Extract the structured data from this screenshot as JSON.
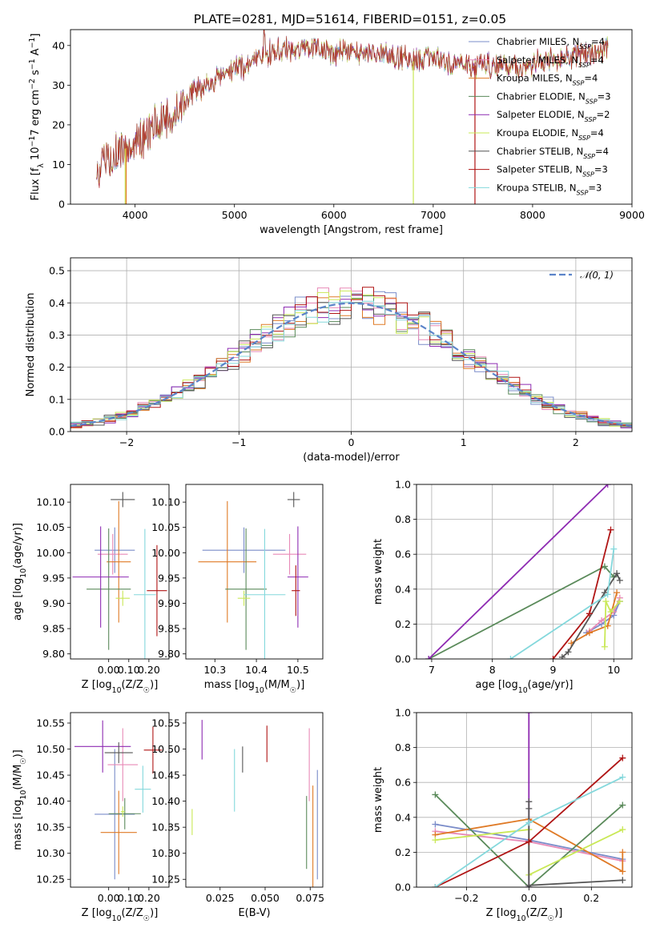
{
  "figure": {
    "title": "PLATE=0281, MJD=51614, FIBERID=0151, z=0.05"
  },
  "models": [
    {
      "name": "Chabrier MILES",
      "nssp": "4",
      "color": "#7a8cc9"
    },
    {
      "name": "Salpeter MILES",
      "nssp": "4",
      "color": "#e88ab7"
    },
    {
      "name": "Kroupa MILES",
      "nssp": "4",
      "color": "#df7a26"
    },
    {
      "name": "Chabrier ELODIE",
      "nssp": "3",
      "color": "#5a8a5a"
    },
    {
      "name": "Salpeter ELODIE",
      "nssp": "2",
      "color": "#8e2bb2"
    },
    {
      "name": "Kroupa ELODIE",
      "nssp": "4",
      "color": "#c9e856"
    },
    {
      "name": "Chabrier STELIB",
      "nssp": "4",
      "color": "#555555"
    },
    {
      "name": "Salpeter STELIB",
      "nssp": "3",
      "color": "#b01515"
    },
    {
      "name": "Kroupa STELIB",
      "nssp": "3",
      "color": "#84d8dc"
    }
  ],
  "chart_data": [
    {
      "id": "spectrum",
      "type": "line",
      "xlabel": "wavelength [Angstrom, rest frame]",
      "ylabel": "Flux [f_λ 10^-17 erg cm^-2 s^-1 A^-1]",
      "xlim": [
        3350,
        9000
      ],
      "ylim": [
        0,
        44
      ],
      "xticks": [
        4000,
        5000,
        6000,
        7000,
        8000,
        9000
      ],
      "yticks": [
        0,
        10,
        20,
        30,
        40
      ],
      "legend_loc": "right",
      "continuum": [
        [
          3600,
          8
        ],
        [
          3700,
          11
        ],
        [
          3800,
          13
        ],
        [
          3900,
          14
        ],
        [
          4000,
          16
        ],
        [
          4100,
          17
        ],
        [
          4200,
          20
        ],
        [
          4300,
          21
        ],
        [
          4400,
          23
        ],
        [
          4500,
          26
        ],
        [
          4600,
          28
        ],
        [
          4700,
          30
        ],
        [
          4800,
          31
        ],
        [
          4900,
          33
        ],
        [
          5000,
          34
        ],
        [
          5100,
          34
        ],
        [
          5200,
          36
        ],
        [
          5300,
          38
        ],
        [
          5400,
          38
        ],
        [
          5500,
          39
        ],
        [
          5600,
          39
        ],
        [
          5700,
          40
        ],
        [
          5800,
          40
        ],
        [
          5900,
          39
        ],
        [
          6000,
          38
        ],
        [
          6100,
          38
        ],
        [
          6200,
          38
        ],
        [
          6300,
          38
        ],
        [
          6400,
          38
        ],
        [
          6500,
          38
        ],
        [
          6600,
          37
        ],
        [
          6700,
          37
        ],
        [
          6800,
          36
        ],
        [
          6900,
          37
        ],
        [
          7000,
          37
        ],
        [
          7100,
          36
        ],
        [
          7200,
          35
        ],
        [
          7300,
          35
        ],
        [
          7400,
          35
        ],
        [
          7500,
          35
        ],
        [
          7600,
          35
        ],
        [
          7700,
          35
        ],
        [
          7800,
          35
        ],
        [
          7900,
          34
        ],
        [
          8000,
          35
        ],
        [
          8100,
          36
        ],
        [
          8200,
          36
        ],
        [
          8300,
          37
        ],
        [
          8400,
          37
        ],
        [
          8500,
          38
        ],
        [
          8600,
          38
        ],
        [
          8700,
          39
        ],
        [
          8760,
          40
        ]
      ],
      "dropouts": [
        [
          3900,
          0,
          "#c9e856"
        ],
        [
          3910,
          0,
          "#df7a26"
        ],
        [
          6800,
          0,
          "#c9e856"
        ],
        [
          7420,
          0,
          "#b01515"
        ]
      ]
    },
    {
      "id": "residuals",
      "type": "step",
      "xlabel": "(data-model)/error",
      "ylabel": "Normed distribution",
      "xlim": [
        -2.5,
        2.5
      ],
      "ylim": [
        0,
        0.54
      ],
      "xticks": [
        -2,
        -1,
        0,
        1,
        2
      ],
      "yticks": [
        0.0,
        0.1,
        0.2,
        0.3,
        0.4,
        0.5
      ],
      "bin_start": -2.5,
      "bin_width": 0.1,
      "reference_label": "𝒩(0, 1)",
      "reference_color": "#5b84c9"
    },
    {
      "id": "age-vs-Z",
      "type": "errorbar",
      "xlabel": "Z [log10(Z/Z☉)]",
      "ylabel": "age [log10(age/yr)]",
      "xlim": [
        -0.19,
        0.3
      ],
      "ylim": [
        9.79,
        10.135
      ],
      "xticks": [
        0.0,
        0.1,
        0.2
      ],
      "yticks": [
        9.8,
        9.85,
        9.9,
        9.95,
        10.0,
        10.05,
        10.1
      ],
      "points": [
        {
          "x": 0.03,
          "y": 10.005,
          "xerr": 0.1,
          "yerr": 0.045
        },
        {
          "x": 0.02,
          "y": 9.997,
          "xerr": 0.075,
          "yerr": 0.04
        },
        {
          "x": 0.05,
          "y": 9.982,
          "xerr": 0.06,
          "yerr": 0.12
        },
        {
          "x": 0.0,
          "y": 9.928,
          "xerr": 0.11,
          "yerr": 0.12
        },
        {
          "x": -0.04,
          "y": 9.952,
          "xerr": 0.14,
          "yerr": 0.1
        },
        {
          "x": 0.07,
          "y": 9.91,
          "xerr": 0.035,
          "yerr": 0.015
        },
        {
          "x": 0.07,
          "y": 10.105,
          "xerr": 0.06,
          "yerr": 0.015
        },
        {
          "x": 0.24,
          "y": 9.925,
          "xerr": 0.05,
          "yerr": 0.09
        },
        {
          "x": 0.18,
          "y": 9.917,
          "xerr": 0.055,
          "yerr": 0.13
        }
      ]
    },
    {
      "id": "age-vs-mass",
      "type": "errorbar",
      "xlabel": "mass [log10(M/M☉)]",
      "ylabel": "",
      "xlim": [
        10.23,
        10.56
      ],
      "ylim": [
        9.79,
        10.135
      ],
      "xticks": [
        10.3,
        10.4,
        10.5
      ],
      "yticks": [
        9.8,
        9.85,
        9.9,
        9.95,
        10.0,
        10.05,
        10.1
      ],
      "points": [
        {
          "x": 10.37,
          "y": 10.005,
          "xerr": 0.1,
          "yerr": 0.045
        },
        {
          "x": 10.48,
          "y": 9.997,
          "xerr": 0.04,
          "yerr": 0.04
        },
        {
          "x": 10.33,
          "y": 9.982,
          "xerr": 0.07,
          "yerr": 0.12
        },
        {
          "x": 10.375,
          "y": 9.928,
          "xerr": 0.05,
          "yerr": 0.12
        },
        {
          "x": 10.5,
          "y": 9.952,
          "xerr": 0.025,
          "yerr": 0.1
        },
        {
          "x": 10.37,
          "y": 9.91,
          "xerr": 0.015,
          "yerr": 0.015
        },
        {
          "x": 10.49,
          "y": 10.105,
          "xerr": 0.015,
          "yerr": 0.015
        },
        {
          "x": 10.495,
          "y": 9.925,
          "xerr": 0.01,
          "yerr": 0.05
        },
        {
          "x": 10.42,
          "y": 9.917,
          "xerr": 0.05,
          "yerr": 0.13
        }
      ]
    },
    {
      "id": "weight-vs-age",
      "type": "line",
      "xlabel": "age [log10(age/yr)]",
      "ylabel": "mass weight",
      "xlim": [
        6.75,
        10.3
      ],
      "ylim": [
        0,
        1.0
      ],
      "xticks": [
        7,
        8,
        9,
        10
      ],
      "yticks": [
        0.0,
        0.2,
        0.4,
        0.6,
        0.8,
        1.0
      ],
      "series": [
        {
          "x": [
            9.55,
            9.8,
            10.0,
            10.1
          ],
          "y": [
            0.15,
            0.2,
            0.25,
            0.33
          ]
        },
        {
          "x": [
            9.6,
            9.8,
            10.0,
            10.1
          ],
          "y": [
            0.16,
            0.22,
            0.27,
            0.35
          ]
        },
        {
          "x": [
            9.3,
            9.6,
            9.9,
            10.05
          ],
          "y": [
            0.09,
            0.15,
            0.19,
            0.38
          ]
        },
        {
          "x": [
            6.95,
            9.85,
            10.0
          ],
          "y": [
            0.0,
            0.53,
            0.47
          ]
        },
        {
          "x": [
            6.95,
            9.9
          ],
          "y": [
            0.0,
            1.0
          ]
        },
        {
          "x": [
            9.85,
            9.87,
            9.95,
            10.1
          ],
          "y": [
            0.07,
            0.33,
            0.27,
            0.33
          ]
        },
        {
          "x": [
            9.15,
            9.25,
            9.85,
            10.05,
            10.1
          ],
          "y": [
            0.01,
            0.04,
            0.38,
            0.49,
            0.45
          ]
        },
        {
          "x": [
            9.0,
            9.6,
            9.95
          ],
          "y": [
            0.0,
            0.26,
            0.74
          ]
        },
        {
          "x": [
            8.3,
            9.9,
            10.0
          ],
          "y": [
            0.0,
            0.37,
            0.63
          ]
        }
      ]
    },
    {
      "id": "mass-vs-Z",
      "type": "errorbar",
      "xlabel": "Z [log10(Z/Z☉)]",
      "ylabel": "mass [log10(M/M☉)]",
      "xlim": [
        -0.19,
        0.3
      ],
      "ylim": [
        10.235,
        10.57
      ],
      "xticks": [
        0.0,
        0.1,
        0.2
      ],
      "yticks": [
        10.25,
        10.3,
        10.35,
        10.4,
        10.45,
        10.5,
        10.55
      ],
      "points": [
        {
          "x": 0.03,
          "y": 10.375,
          "xerr": 0.1,
          "yerr": 0.125
        },
        {
          "x": 0.07,
          "y": 10.47,
          "xerr": 0.075,
          "yerr": 0.07
        },
        {
          "x": 0.05,
          "y": 10.34,
          "xerr": 0.09,
          "yerr": 0.08
        },
        {
          "x": 0.08,
          "y": 10.376,
          "xerr": 0.08,
          "yerr": 0.03
        },
        {
          "x": -0.03,
          "y": 10.505,
          "xerr": 0.14,
          "yerr": 0.05
        },
        {
          "x": 0.07,
          "y": 10.38,
          "xerr": 0.01,
          "yerr": 0.01
        },
        {
          "x": 0.05,
          "y": 10.493,
          "xerr": 0.07,
          "yerr": 0.02
        },
        {
          "x": 0.22,
          "y": 10.498,
          "xerr": 0.045,
          "yerr": 0.045
        },
        {
          "x": 0.17,
          "y": 10.423,
          "xerr": 0.04,
          "yerr": 0.045
        }
      ]
    },
    {
      "id": "mass-vs-EBV",
      "type": "errorbar",
      "xlabel": "E(B-V)",
      "ylabel": "",
      "xlim": [
        0.006,
        0.082
      ],
      "ylim": [
        10.235,
        10.57
      ],
      "xticks": [
        0.025,
        0.05,
        0.075
      ],
      "xticklabels": [
        "0.025",
        "0.050",
        "0.075"
      ],
      "yticks": [
        10.25,
        10.3,
        10.35,
        10.4,
        10.45,
        10.5,
        10.55
      ],
      "points": [
        {
          "x": 0.079,
          "y": 10.355,
          "xerr": 0,
          "yerr": 0.105
        },
        {
          "x": 0.0745,
          "y": 10.47,
          "xerr": 0,
          "yerr": 0.07
        },
        {
          "x": 0.0765,
          "y": 10.32,
          "xerr": 0,
          "yerr": 0.11
        },
        {
          "x": 0.073,
          "y": 10.34,
          "xerr": 0,
          "yerr": 0.07
        },
        {
          "x": 0.015,
          "y": 10.518,
          "xerr": 0,
          "yerr": 0.038
        },
        {
          "x": 0.0095,
          "y": 10.36,
          "xerr": 0,
          "yerr": 0.025
        },
        {
          "x": 0.0375,
          "y": 10.48,
          "xerr": 0,
          "yerr": 0.025
        },
        {
          "x": 0.051,
          "y": 10.51,
          "xerr": 0,
          "yerr": 0.035
        },
        {
          "x": 0.033,
          "y": 10.44,
          "xerr": 0,
          "yerr": 0.06
        }
      ]
    },
    {
      "id": "weight-vs-Z",
      "type": "line",
      "xlabel": "Z [log10(Z/Z☉)]",
      "ylabel": "mass weight",
      "xlim": [
        -0.36,
        0.33
      ],
      "ylim": [
        0,
        1.0
      ],
      "xticks": [
        -0.2,
        0.0,
        0.2
      ],
      "yticks": [
        0.0,
        0.2,
        0.4,
        0.6,
        0.8,
        1.0
      ],
      "series": [
        {
          "x": [
            -0.3,
            0.0,
            0.3
          ],
          "y": [
            0.36,
            0.27,
            0.16
          ]
        },
        {
          "x": [
            -0.3,
            0.0,
            0.3
          ],
          "y": [
            0.32,
            0.26,
            0.15
          ]
        },
        {
          "x": [
            -0.3,
            0.0,
            0.3,
            0.3
          ],
          "y": [
            0.3,
            0.39,
            0.09,
            0.2
          ]
        },
        {
          "x": [
            -0.3,
            0.0,
            0.3
          ],
          "y": [
            0.53,
            0.0,
            0.47
          ]
        },
        {
          "x": [
            0.0,
            0.0
          ],
          "y": [
            0.0,
            1.0
          ]
        },
        {
          "x": [
            -0.3,
            0.0,
            0.0,
            0.3
          ],
          "y": [
            0.27,
            0.33,
            0.07,
            0.33
          ]
        },
        {
          "x": [
            0.0,
            0.0,
            0.0,
            0.3
          ],
          "y": [
            0.49,
            0.45,
            0.01,
            0.04
          ]
        },
        {
          "x": [
            -0.3,
            0.0,
            0.3
          ],
          "y": [
            0.0,
            0.26,
            0.74
          ]
        },
        {
          "x": [
            -0.3,
            0.0,
            0.3
          ],
          "y": [
            0.0,
            0.37,
            0.63
          ]
        }
      ]
    }
  ]
}
